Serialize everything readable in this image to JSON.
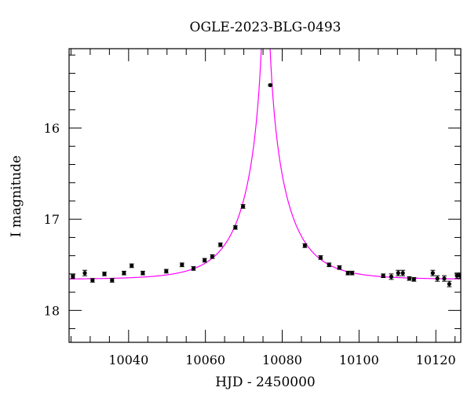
{
  "chart_data": {
    "type": "scatter",
    "title": "OGLE-2023-BLG-0493",
    "xlabel": "HJD - 2450000",
    "ylabel": "I magnitude",
    "xlim": [
      10024.5,
      10126.5
    ],
    "ylim": [
      18.35,
      15.13
    ],
    "y_inverted": true,
    "x_major_ticks": [
      10040,
      10060,
      10080,
      10100,
      10120
    ],
    "x_tick_labels": [
      "10040",
      "10060",
      "10080",
      "10100",
      "10120"
    ],
    "x_minor_step": 5,
    "y_major_ticks": [
      16,
      17,
      18
    ],
    "y_tick_labels": [
      "16",
      "17",
      "18"
    ],
    "y_minor_step": 0.2,
    "grid": false,
    "colors": {
      "model": "#ff00ff",
      "points": "#000000"
    },
    "series": [
      {
        "name": "OGLE data",
        "x": [
          10025.5,
          10028.6,
          10030.6,
          10033.7,
          10035.7,
          10038.8,
          10040.8,
          10043.7,
          10049.8,
          10053.9,
          10056.9,
          10059.8,
          10061.8,
          10063.9,
          10067.8,
          10069.8,
          10076.9,
          10085.9,
          10090.0,
          10092.2,
          10094.9,
          10097.1,
          10098.2,
          10106.3,
          10108.4,
          10110.2,
          10111.4,
          10113.1,
          10114.3,
          10119.2,
          10120.4,
          10122.2,
          10123.5,
          10125.5,
          10126.3
        ],
        "y": [
          17.63,
          17.59,
          17.67,
          17.6,
          17.67,
          17.59,
          17.51,
          17.59,
          17.57,
          17.5,
          17.54,
          17.45,
          17.41,
          17.28,
          17.09,
          16.86,
          15.53,
          17.29,
          17.42,
          17.5,
          17.53,
          17.59,
          17.59,
          17.62,
          17.63,
          17.59,
          17.59,
          17.65,
          17.66,
          17.59,
          17.65,
          17.65,
          17.71,
          17.62,
          17.62
        ],
        "yerr": [
          0.02,
          0.03,
          0.02,
          0.02,
          0.02,
          0.02,
          0.02,
          0.02,
          0.02,
          0.02,
          0.02,
          0.02,
          0.02,
          0.02,
          0.02,
          0.02,
          0.01,
          0.02,
          0.02,
          0.02,
          0.02,
          0.02,
          0.02,
          0.02,
          0.03,
          0.03,
          0.03,
          0.02,
          0.02,
          0.03,
          0.03,
          0.03,
          0.03,
          0.03,
          0.03
        ]
      },
      {
        "name": "model",
        "kind": "line",
        "params": {
          "t0": 10075.7,
          "tE": 11.8,
          "u0": 0.01,
          "baseline": 17.66
        }
      }
    ]
  }
}
